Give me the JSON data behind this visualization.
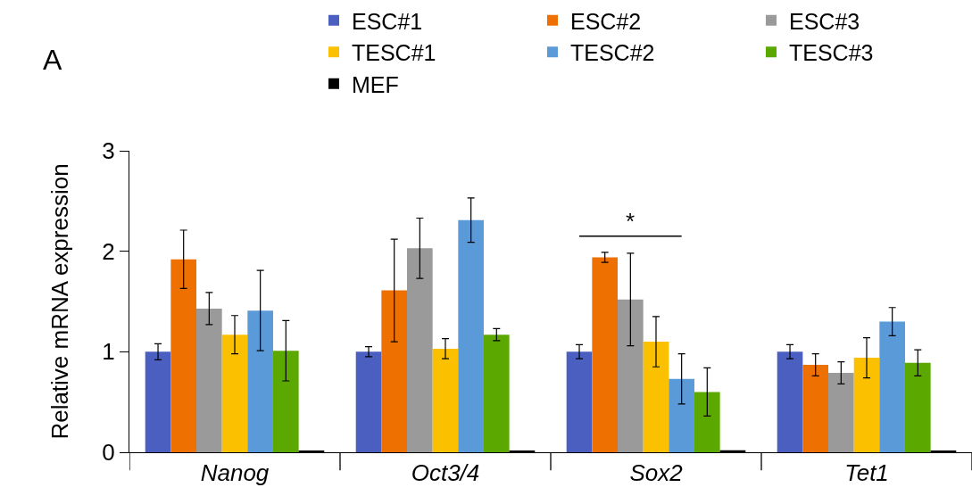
{
  "chart_data": {
    "type": "bar",
    "ylabel": "Relative mRNA expression",
    "categories": [
      "Nanog",
      "Oct3/4",
      "Sox2",
      "Tet1"
    ],
    "series": [
      {
        "name": "ESC#1",
        "color": "#4a5fbf",
        "values": [
          1.0,
          1.0,
          1.0,
          1.0
        ],
        "errors": [
          0.08,
          0.05,
          0.07,
          0.07
        ]
      },
      {
        "name": "ESC#2",
        "color": "#ee7000",
        "values": [
          1.92,
          1.61,
          1.94,
          0.87
        ],
        "errors": [
          0.29,
          0.51,
          0.05,
          0.11
        ]
      },
      {
        "name": "ESC#3",
        "color": "#9a9a9a",
        "values": [
          1.43,
          2.03,
          1.52,
          0.79
        ],
        "errors": [
          0.16,
          0.3,
          0.46,
          0.11
        ]
      },
      {
        "name": "TESC#1",
        "color": "#fbc000",
        "values": [
          1.17,
          1.03,
          1.1,
          0.94
        ],
        "errors": [
          0.19,
          0.1,
          0.25,
          0.2
        ]
      },
      {
        "name": "TESC#2",
        "color": "#5b9ad9",
        "values": [
          1.41,
          2.31,
          0.73,
          1.3
        ],
        "errors": [
          0.4,
          0.22,
          0.25,
          0.14
        ]
      },
      {
        "name": "TESC#3",
        "color": "#5aa800",
        "values": [
          1.01,
          1.17,
          0.6,
          0.89
        ],
        "errors": [
          0.3,
          0.06,
          0.24,
          0.13
        ]
      },
      {
        "name": "MEF",
        "color": "#000000",
        "values": [
          0.01,
          0.01,
          0.02,
          0.01
        ]
      }
    ],
    "ylim": [
      0,
      3
    ],
    "yticks": [
      0,
      1,
      2,
      3
    ],
    "grid": false,
    "legend": "top right",
    "annotations": [
      "A",
      "*"
    ]
  }
}
